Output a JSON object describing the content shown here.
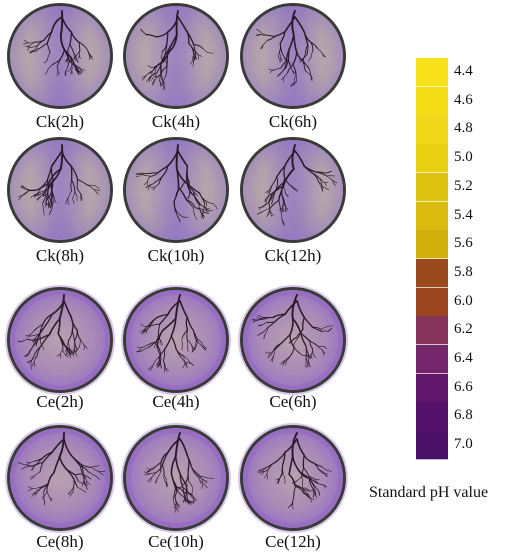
{
  "plates": [
    {
      "label": "Ck(2h)",
      "group": "Ck"
    },
    {
      "label": "Ck(4h)",
      "group": "Ck"
    },
    {
      "label": "Ck(6h)",
      "group": "Ck"
    },
    {
      "label": "Ck(8h)",
      "group": "Ck"
    },
    {
      "label": "Ck(10h)",
      "group": "Ck"
    },
    {
      "label": "Ck(12h)",
      "group": "Ck"
    },
    {
      "label": "Ce(2h)",
      "group": "Ce"
    },
    {
      "label": "Ce(4h)",
      "group": "Ce"
    },
    {
      "label": "Ce(6h)",
      "group": "Ce"
    },
    {
      "label": "Ce(8h)",
      "group": "Ce"
    },
    {
      "label": "Ce(10h)",
      "group": "Ce"
    },
    {
      "label": "Ce(12h)",
      "group": "Ce"
    }
  ],
  "legend": {
    "title": "Standard pH value",
    "items": [
      {
        "value": "4.4",
        "color": "#f7e21a"
      },
      {
        "value": "4.6",
        "color": "#f4dd14"
      },
      {
        "value": "4.8",
        "color": "#f0d71a"
      },
      {
        "value": "5.0",
        "color": "#e8cf10"
      },
      {
        "value": "5.2",
        "color": "#dcc312"
      },
      {
        "value": "5.4",
        "color": "#d8bb0e"
      },
      {
        "value": "5.6",
        "color": "#d2b00c"
      },
      {
        "value": "5.8",
        "color": "#9a4a1c"
      },
      {
        "value": "6.0",
        "color": "#9b4520"
      },
      {
        "value": "6.2",
        "color": "#86355a"
      },
      {
        "value": "6.4",
        "color": "#74266a"
      },
      {
        "value": "6.6",
        "color": "#60176a"
      },
      {
        "value": "6.8",
        "color": "#55126a"
      },
      {
        "value": "7.0",
        "color": "#4a0f66"
      }
    ]
  },
  "colors": {
    "plate_rim": "#3a3a3a",
    "ck_medium": "#b9a7a8",
    "ck_purple": "#8c72c8",
    "ce_medium": "#b7a0b0",
    "ce_purple": "#8e5fc0",
    "root": "#2a1a2a"
  }
}
